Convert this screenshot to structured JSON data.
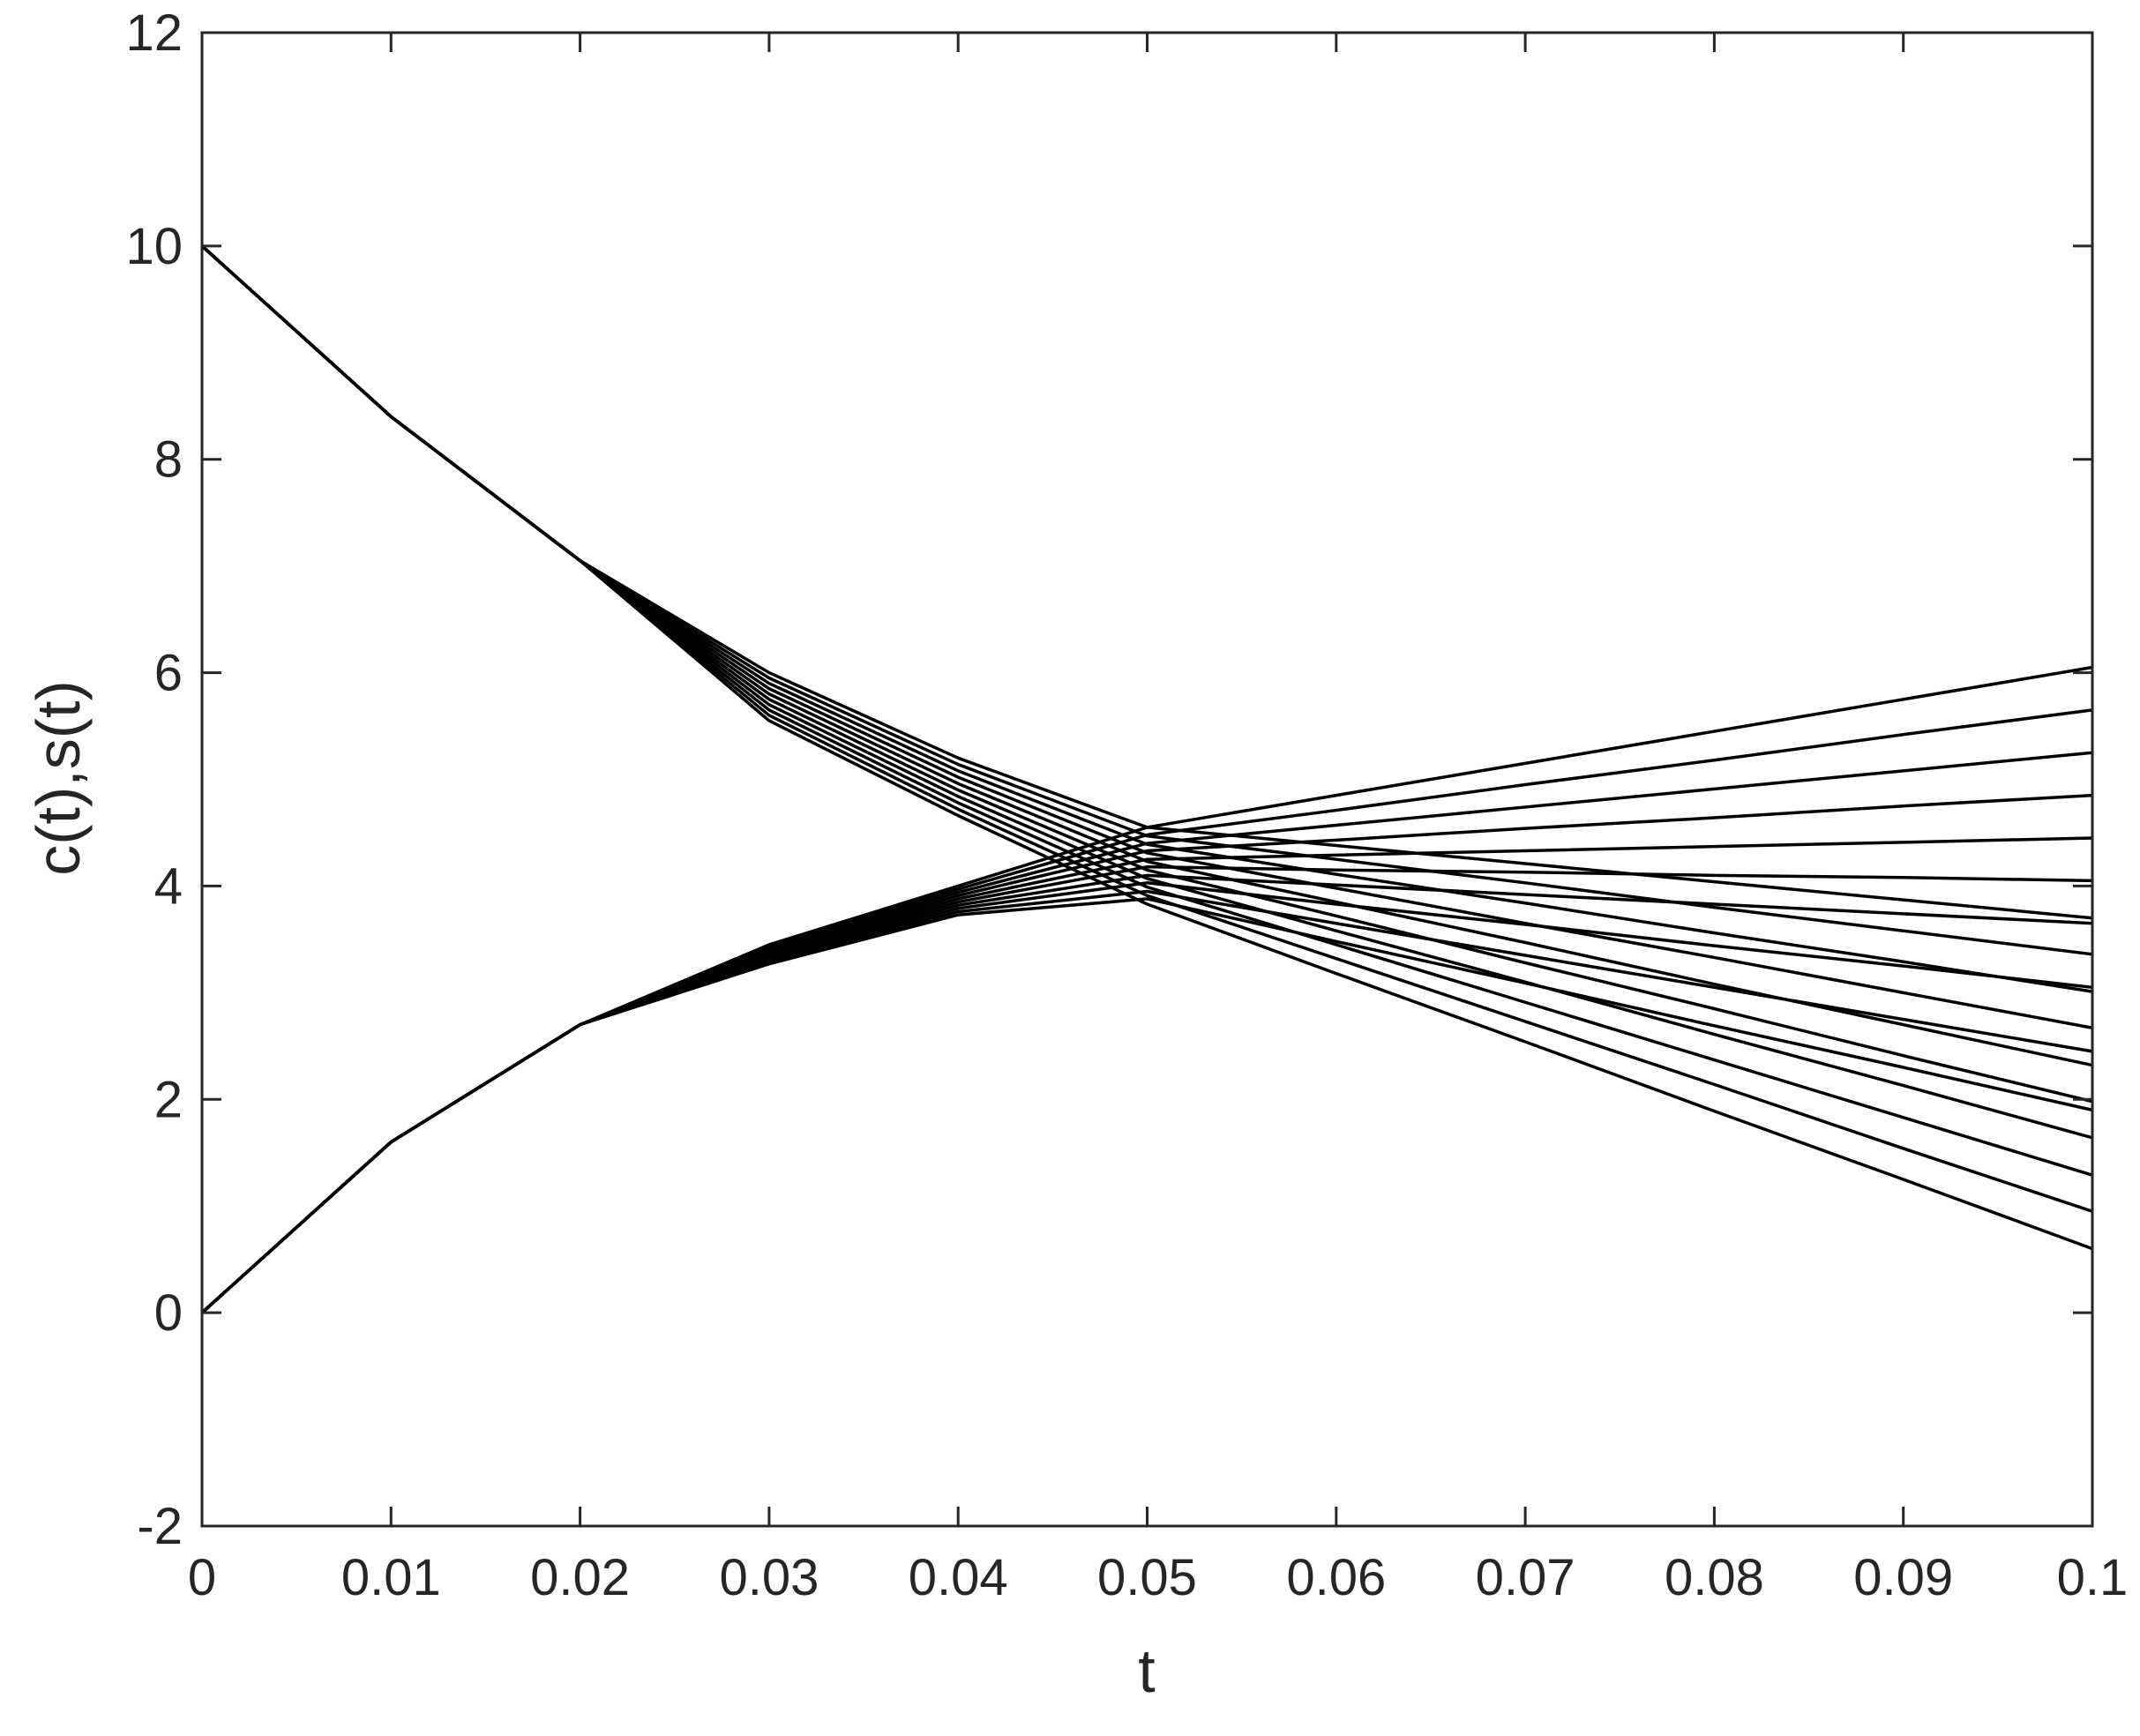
{
  "chart_data": {
    "type": "line",
    "xlabel": "t",
    "ylabel": "c(t),s(t)",
    "x": [
      0,
      0.01,
      0.02,
      0.03,
      0.04,
      0.05,
      0.06,
      0.07,
      0.08,
      0.09,
      0.1
    ],
    "xlim": [
      0,
      0.1
    ],
    "xticks": [
      0,
      0.01,
      0.02,
      0.03,
      0.04,
      0.05,
      0.06,
      0.07,
      0.08,
      0.09,
      0.1
    ],
    "ylim": [
      -2,
      12
    ],
    "yticks": [
      -2,
      0,
      2,
      4,
      6,
      8,
      10,
      12
    ],
    "grid": false,
    "series": [
      {
        "color": "#000000",
        "values": [
          10,
          8.4,
          7.05,
          6.0,
          5.2,
          4.55,
          4.38,
          4.21,
          4.04,
          3.87,
          3.7
        ]
      },
      {
        "color": "#000000",
        "values": [
          10,
          8.4,
          7.05,
          5.95,
          5.14,
          4.47,
          4.25,
          4.03,
          3.8,
          3.58,
          3.36
        ]
      },
      {
        "color": "#000000",
        "values": [
          10,
          8.4,
          7.05,
          5.9,
          5.08,
          4.39,
          4.11,
          3.84,
          3.56,
          3.29,
          3.01
        ]
      },
      {
        "color": "#000000",
        "values": [
          10,
          8.4,
          7.05,
          5.85,
          5.02,
          4.31,
          3.98,
          3.65,
          3.33,
          3.0,
          2.67
        ]
      },
      {
        "color": "#000000",
        "values": [
          10,
          8.4,
          7.05,
          5.8,
          4.96,
          4.23,
          3.85,
          3.47,
          3.08,
          2.7,
          2.32
        ]
      },
      {
        "color": "#000000",
        "values": [
          10,
          8.4,
          7.05,
          5.75,
          4.9,
          4.15,
          3.72,
          3.28,
          2.85,
          2.41,
          1.98
        ]
      },
      {
        "color": "#000000",
        "values": [
          10,
          8.4,
          7.05,
          5.7,
          4.84,
          4.07,
          3.58,
          3.1,
          2.61,
          2.13,
          1.64
        ]
      },
      {
        "color": "#000000",
        "values": [
          10,
          8.4,
          7.05,
          5.65,
          4.78,
          3.99,
          3.45,
          2.91,
          2.37,
          1.83,
          1.29
        ]
      },
      {
        "color": "#000000",
        "values": [
          10,
          8.4,
          7.05,
          5.6,
          4.72,
          3.91,
          3.32,
          2.73,
          2.14,
          1.54,
          0.95
        ]
      },
      {
        "color": "#000000",
        "values": [
          10,
          8.4,
          7.05,
          5.55,
          4.66,
          3.83,
          3.18,
          2.54,
          1.89,
          1.25,
          0.6
        ]
      },
      {
        "color": "#000000",
        "values": [
          0,
          1.6,
          2.7,
          3.45,
          4.0,
          4.55,
          4.85,
          5.15,
          5.45,
          5.75,
          6.05
        ]
      },
      {
        "color": "#000000",
        "values": [
          0,
          1.6,
          2.7,
          3.43,
          3.97,
          4.48,
          4.71,
          4.95,
          5.18,
          5.42,
          5.65
        ]
      },
      {
        "color": "#000000",
        "values": [
          0,
          1.6,
          2.7,
          3.41,
          3.94,
          4.4,
          4.57,
          4.74,
          4.91,
          5.08,
          5.25
        ]
      },
      {
        "color": "#000000",
        "values": [
          0,
          1.6,
          2.7,
          3.39,
          3.91,
          4.33,
          4.43,
          4.54,
          4.64,
          4.75,
          4.85
        ]
      },
      {
        "color": "#000000",
        "values": [
          0,
          1.6,
          2.7,
          3.37,
          3.88,
          4.25,
          4.29,
          4.33,
          4.37,
          4.41,
          4.45
        ]
      },
      {
        "color": "#000000",
        "values": [
          0,
          1.6,
          2.7,
          3.35,
          3.85,
          4.18,
          4.15,
          4.13,
          4.1,
          4.08,
          4.05
        ]
      },
      {
        "color": "#000000",
        "values": [
          0,
          1.6,
          2.7,
          3.33,
          3.82,
          4.1,
          4.01,
          3.92,
          3.83,
          3.74,
          3.65
        ]
      },
      {
        "color": "#000000",
        "values": [
          0,
          1.6,
          2.7,
          3.31,
          3.79,
          4.03,
          3.83,
          3.64,
          3.44,
          3.25,
          3.05
        ]
      },
      {
        "color": "#000000",
        "values": [
          0,
          1.6,
          2.7,
          3.29,
          3.76,
          3.95,
          3.65,
          3.35,
          3.05,
          2.75,
          2.45
        ]
      },
      {
        "color": "#000000",
        "values": [
          0,
          1.6,
          2.7,
          3.27,
          3.73,
          3.88,
          3.48,
          3.09,
          2.69,
          2.3,
          1.9
        ]
      }
    ]
  }
}
